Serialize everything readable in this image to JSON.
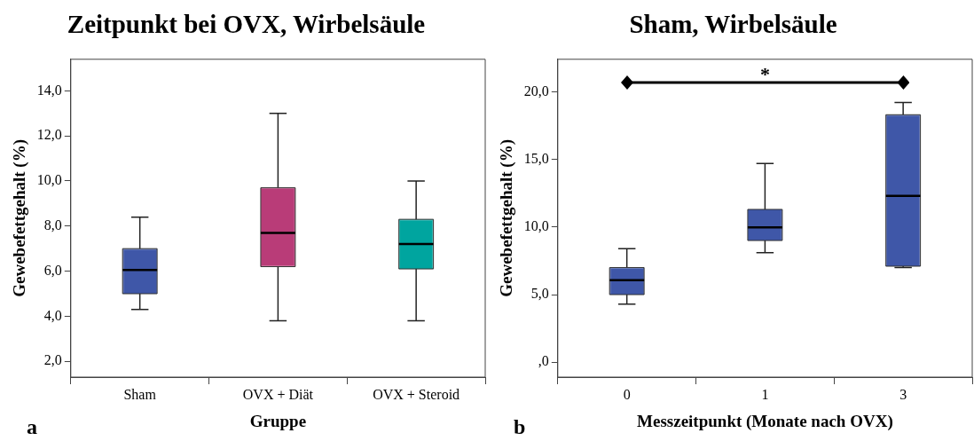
{
  "chart_data": [
    {
      "type": "box",
      "title": "Zeitpunkt bei OVX, Wirbelsäule",
      "xlabel": "Gruppe",
      "ylabel": "Gewebefettgehalt (%)",
      "categories": [
        "Sham",
        "OVX + Diät",
        "OVX + Steroid"
      ],
      "colors": [
        "#3f57a8",
        "#b93c78",
        "#00a59f"
      ],
      "boxes": [
        {
          "low": 4.3,
          "q1": 5.0,
          "median": 6.05,
          "q3": 7.0,
          "high": 8.4
        },
        {
          "low": 3.8,
          "q1": 6.2,
          "median": 7.7,
          "q3": 9.7,
          "high": 13.0
        },
        {
          "low": 3.8,
          "q1": 6.1,
          "median": 7.2,
          "q3": 8.3,
          "high": 10.0
        }
      ],
      "ylim": [
        1.3,
        15.4
      ],
      "yticks": [
        {
          "value": 2,
          "label": "2,0"
        },
        {
          "value": 4,
          "label": "4,0"
        },
        {
          "value": 6,
          "label": "6,0"
        },
        {
          "value": 8,
          "label": "8,0"
        },
        {
          "value": 10,
          "label": "10,0"
        },
        {
          "value": 12,
          "label": "12,0"
        },
        {
          "value": 14,
          "label": "14,0"
        }
      ],
      "grid": false,
      "legend": false,
      "annotations": [
        "a"
      ]
    },
    {
      "type": "box",
      "title": "Sham, Wirbelsäule",
      "xlabel": "Messzeitpunkt (Monate nach OVX)",
      "ylabel": "Gewebefettgehalt (%)",
      "categories": [
        "0",
        "1",
        "3"
      ],
      "color": "#3f57a8",
      "boxes": [
        {
          "low": 4.3,
          "q1": 5.0,
          "median": 6.06,
          "q3": 7.0,
          "high": 8.4
        },
        {
          "low": 8.1,
          "q1": 9.0,
          "median": 9.97,
          "q3": 11.3,
          "high": 14.7
        },
        {
          "low": 7.0,
          "q1": 7.1,
          "median": 12.3,
          "q3": 18.3,
          "high": 19.2
        }
      ],
      "ylim": [
        -1.1,
        22.4
      ],
      "yticks": [
        {
          "value": 0,
          "label": ",0"
        },
        {
          "value": 5,
          "label": "5,0"
        },
        {
          "value": 10,
          "label": "10,0"
        },
        {
          "value": 15,
          "label": "15,0"
        },
        {
          "value": 20,
          "label": "20,0"
        }
      ],
      "grid": false,
      "legend": false,
      "annotations": [
        "b",
        "*"
      ]
    }
  ]
}
